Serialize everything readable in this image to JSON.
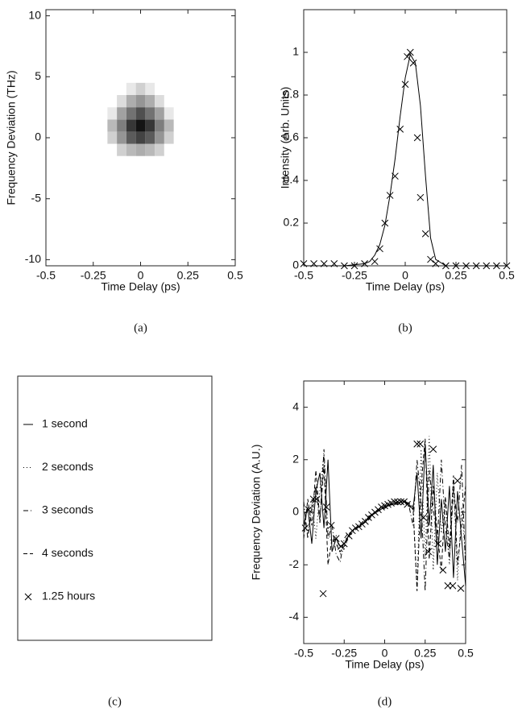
{
  "chart_data": [
    {
      "type": "heatmap",
      "caption": "(a)",
      "xlabel": "Time Delay (ps)",
      "ylabel": "Frequency Deviation (THz)",
      "xlim": [
        -0.5,
        0.5
      ],
      "ylim": [
        -10.5,
        10.5
      ],
      "xticks": [
        -0.5,
        -0.25,
        0,
        0.25,
        0.5
      ],
      "yticks": [
        -10,
        -5,
        0,
        5,
        10
      ],
      "x": [
        -0.15,
        -0.1,
        -0.05,
        0,
        0.05,
        0.1,
        0.15
      ],
      "y": [
        -1,
        0,
        1,
        2,
        3,
        4
      ],
      "z": [
        [
          0,
          0.2,
          0.3,
          0.35,
          0.3,
          0.2,
          0
        ],
        [
          0.2,
          0.45,
          0.7,
          0.8,
          0.7,
          0.45,
          0.2
        ],
        [
          0.3,
          0.55,
          0.85,
          1,
          0.85,
          0.55,
          0.3
        ],
        [
          0.1,
          0.4,
          0.6,
          0.75,
          0.6,
          0.4,
          0.1
        ],
        [
          0,
          0.15,
          0.35,
          0.45,
          0.35,
          0.15,
          0
        ],
        [
          0,
          0,
          0.1,
          0.2,
          0.1,
          0,
          0
        ]
      ]
    },
    {
      "type": "line",
      "caption": "(b)",
      "xlabel": "Time Delay (ps)",
      "ylabel": "Intensity (Arb. Units)",
      "xlim": [
        -0.5,
        0.5
      ],
      "ylim": [
        0,
        1.2
      ],
      "xticks": [
        -0.5,
        -0.25,
        0,
        0.25,
        0.5
      ],
      "yticks": [
        0,
        0.2,
        0.4,
        0.6,
        0.8,
        1
      ],
      "series": [
        {
          "style": "solid",
          "color": "#000000",
          "x": [
            -0.5,
            -0.3,
            -0.2,
            -0.175,
            -0.15,
            -0.125,
            -0.1,
            -0.075,
            -0.05,
            -0.025,
            0,
            0.025,
            0.05,
            0.075,
            0.1,
            0.125,
            0.15,
            0.2,
            0.5
          ],
          "values": [
            0,
            0,
            0.01,
            0.02,
            0.05,
            0.1,
            0.19,
            0.33,
            0.5,
            0.7,
            0.88,
            0.99,
            0.95,
            0.75,
            0.42,
            0.13,
            0.03,
            0,
            0
          ]
        },
        {
          "marker": "x",
          "color": "#000000",
          "x": [
            -0.5,
            -0.45,
            -0.4,
            -0.35,
            -0.3,
            -0.25,
            -0.2,
            -0.15,
            -0.125,
            -0.1,
            -0.075,
            -0.05,
            -0.025,
            0,
            0.01,
            0.025,
            0.04,
            0.06,
            0.075,
            0.1,
            0.125,
            0.15,
            0.2,
            0.25,
            0.3,
            0.35,
            0.4,
            0.45,
            0.5
          ],
          "values": [
            0.01,
            0.01,
            0.01,
            0.01,
            0,
            0,
            0.01,
            0.02,
            0.08,
            0.2,
            0.33,
            0.42,
            0.64,
            0.85,
            0.98,
            1,
            0.95,
            0.6,
            0.32,
            0.15,
            0.03,
            0.01,
            0,
            0,
            0,
            0,
            0,
            0,
            0
          ]
        }
      ]
    },
    {
      "type": "legend",
      "caption": "(c)",
      "entries": [
        {
          "name": "1 second",
          "style": "solid"
        },
        {
          "name": "2 seconds",
          "style": "dotted"
        },
        {
          "name": "3 seconds",
          "style": "dashdot"
        },
        {
          "name": "4 seconds",
          "style": "dashed"
        },
        {
          "name": "1.25 hours",
          "marker": "x"
        }
      ]
    },
    {
      "type": "line",
      "caption": "(d)",
      "xlabel": "Time Delay (ps)",
      "ylabel": "Frequency Deviation (A.U.)",
      "xlim": [
        -0.5,
        0.5
      ],
      "ylim": [
        -5,
        5
      ],
      "xticks": [
        -0.5,
        -0.25,
        0,
        0.25,
        0.5
      ],
      "yticks": [
        -4,
        -2,
        0,
        2,
        4
      ],
      "x": [
        -0.5,
        -0.475,
        -0.45,
        -0.425,
        -0.4,
        -0.375,
        -0.35,
        -0.325,
        -0.3,
        -0.275,
        -0.25,
        -0.225,
        -0.2,
        -0.175,
        -0.15,
        -0.125,
        -0.1,
        -0.075,
        -0.05,
        -0.025,
        0,
        0.025,
        0.05,
        0.075,
        0.1,
        0.125,
        0.15,
        0.175,
        0.2,
        0.225,
        0.25,
        0.275,
        0.3,
        0.325,
        0.35,
        0.375,
        0.4,
        0.425,
        0.45,
        0.475,
        0.5
      ],
      "series": [
        {
          "style": "solid",
          "color": "#000000",
          "values": [
            -0.5,
            0.2,
            -1.2,
            0.8,
            1.5,
            -0.6,
            2.0,
            -1.5,
            -1.0,
            -1.3,
            -1.2,
            -0.9,
            -0.7,
            -0.6,
            -0.5,
            -0.4,
            -0.25,
            -0.1,
            0,
            0.1,
            0.2,
            0.25,
            0.3,
            0.35,
            0.4,
            0.4,
            0.3,
            0.1,
            1.5,
            -1.0,
            2.6,
            -0.5,
            1.8,
            -2.0,
            0.5,
            -1.5,
            1.0,
            -2.5,
            0.8,
            -1.0,
            -2.8
          ]
        },
        {
          "style": "dotted",
          "color": "#000000",
          "values": [
            -0.3,
            -0.8,
            0.5,
            -1.0,
            0.9,
            2.2,
            -0.8,
            -1.2,
            -0.9,
            -1.6,
            -1.4,
            -1.0,
            -0.8,
            -0.65,
            -0.5,
            -0.35,
            -0.2,
            -0.05,
            0.05,
            0.15,
            0.25,
            0.3,
            0.35,
            0.4,
            0.45,
            0.35,
            0.2,
            0.3,
            -2.8,
            2.4,
            -1.8,
            2.9,
            -2.2,
            1.5,
            -0.8,
            0.5,
            -2.0,
            1.2,
            -2.6,
            0.2,
            -1.8
          ]
        },
        {
          "style": "dashdot",
          "color": "#000000",
          "values": [
            0.4,
            -1.0,
            0.2,
            1.0,
            -0.4,
            2.4,
            -1.0,
            -0.5,
            -1.6,
            -1.9,
            -1.0,
            -0.8,
            -0.75,
            -0.55,
            -0.45,
            -0.3,
            -0.15,
            -0.1,
            0.05,
            0.1,
            0.2,
            0.3,
            0.3,
            0.4,
            0.35,
            0.45,
            0.25,
            -0.5,
            2.0,
            0.4,
            -3.0,
            1.6,
            0.2,
            -1.2,
            2.0,
            -0.6,
            -1.8,
            0.9,
            -0.4,
            1.8,
            -2.2
          ]
        },
        {
          "style": "dashed",
          "color": "#000000",
          "values": [
            -1.0,
            0.5,
            -0.5,
            1.6,
            -0.3,
            1.8,
            -2.0,
            -1.0,
            -1.2,
            -1.5,
            -1.3,
            -0.95,
            -0.7,
            -0.6,
            -0.55,
            -0.4,
            -0.3,
            -0.1,
            0,
            0.1,
            0.15,
            0.25,
            0.35,
            0.3,
            0.4,
            0.4,
            0.35,
            0.2,
            -3.0,
            1.0,
            2.8,
            -1.8,
            1.0,
            -0.8,
            -2.2,
            0.6,
            -1.4,
            1.4,
            -2.0,
            -0.5,
            1.0
          ]
        },
        {
          "marker": "x",
          "color": "#000000",
          "x": [
            -0.49,
            -0.47,
            -0.44,
            -0.42,
            -0.38,
            -0.36,
            -0.33,
            -0.3,
            -0.27,
            -0.25,
            -0.22,
            -0.2,
            -0.18,
            -0.16,
            -0.14,
            -0.12,
            -0.1,
            -0.08,
            -0.06,
            -0.04,
            -0.02,
            0,
            0.02,
            0.04,
            0.06,
            0.08,
            0.1,
            0.12,
            0.14,
            0.2,
            0.22,
            0.24,
            0.27,
            0.3,
            0.33,
            0.36,
            0.39,
            0.42,
            0.45,
            0.47
          ],
          "values": [
            -0.6,
            0.1,
            0.5,
            0.5,
            -3.1,
            0.2,
            -0.5,
            -1.0,
            -1.3,
            -1.2,
            -0.9,
            -0.7,
            -0.6,
            -0.55,
            -0.45,
            -0.35,
            -0.2,
            -0.1,
            0,
            0.1,
            0.2,
            0.25,
            0.3,
            0.35,
            0.4,
            0.4,
            0.4,
            0.4,
            0.3,
            2.6,
            2.6,
            -0.2,
            -1.5,
            2.4,
            -1.2,
            -2.2,
            -2.8,
            -2.8,
            1.2,
            -2.9
          ]
        }
      ]
    }
  ]
}
